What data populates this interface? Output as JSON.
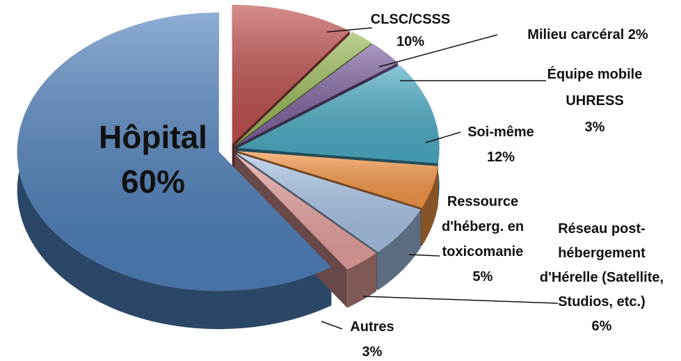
{
  "chart_data": {
    "type": "pie",
    "categories": [
      "Hôpital",
      "CLSC/CSSS",
      "Milieu carcéral",
      "Équipe mobile UHRESS",
      "Soi-même",
      "Ressource d'héberg. en toxicomanie",
      "Réseau post-hébergement d'Hérelle (Satellite, Studios, etc.)",
      "Autres"
    ],
    "values": [
      60,
      10,
      2,
      3,
      12,
      5,
      6,
      3
    ],
    "value_labels": [
      "60%",
      "10%",
      "2%",
      "3%",
      "12%",
      "5%",
      "6%",
      "3%"
    ],
    "colors": [
      "#4f81bd",
      "#c0504d",
      "#9bbb59",
      "#8064a2",
      "#4bacc6",
      "#f79646",
      "#a9c4e8",
      "#e8a19f"
    ]
  }
}
